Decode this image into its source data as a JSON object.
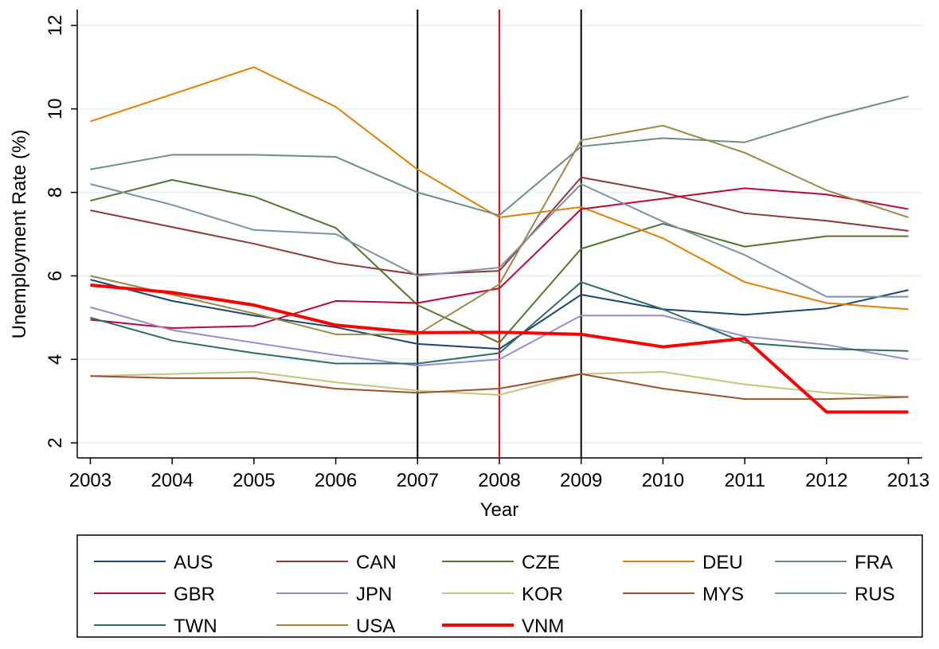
{
  "chart_data": {
    "type": "line",
    "x_label": "Year",
    "y_label": "Unemployment Rate (%)",
    "x": [
      2003,
      2004,
      2005,
      2006,
      2007,
      2008,
      2009,
      2010,
      2011,
      2012,
      2013
    ],
    "xlim": [
      2002.84,
      2013.17
    ],
    "xticks": [
      2003,
      2004,
      2005,
      2006,
      2007,
      2008,
      2009,
      2010,
      2011,
      2012,
      2013
    ],
    "ylim": [
      1.64,
      12.38
    ],
    "yticks": [
      2,
      4,
      6,
      8,
      10,
      12
    ],
    "grid": true,
    "vlines": [
      {
        "x": 2007,
        "color": "#000000"
      },
      {
        "x": 2008,
        "color": "#ff0000"
      },
      {
        "x": 2009,
        "color": "#000000"
      }
    ],
    "series": [
      {
        "name": "AUS",
        "color": "#1a476f",
        "values": [
          5.91,
          5.4,
          5.05,
          4.77,
          4.37,
          4.25,
          5.55,
          5.2,
          5.07,
          5.22,
          5.66
        ]
      },
      {
        "name": "CAN",
        "color": "#90353b",
        "values": [
          7.57,
          7.17,
          6.77,
          6.31,
          6.03,
          6.12,
          8.36,
          8.0,
          7.5,
          7.32,
          7.08
        ]
      },
      {
        "name": "CZE",
        "color": "#55752f",
        "values": [
          7.8,
          8.3,
          7.9,
          7.15,
          5.3,
          4.4,
          6.65,
          7.25,
          6.7,
          6.95,
          6.95
        ]
      },
      {
        "name": "DEU",
        "color": "#e37e00",
        "values": [
          9.7,
          10.35,
          11.0,
          10.05,
          8.55,
          7.4,
          7.65,
          6.9,
          5.85,
          5.35,
          5.2
        ]
      },
      {
        "name": "FRA",
        "color": "#6e8e84",
        "values": [
          8.55,
          8.9,
          8.9,
          8.85,
          8.0,
          7.45,
          9.1,
          9.3,
          9.2,
          9.8,
          10.3
        ]
      },
      {
        "name": "GBR",
        "color": "#c10534",
        "values": [
          4.95,
          4.75,
          4.8,
          5.4,
          5.35,
          5.7,
          7.6,
          7.85,
          8.1,
          7.95,
          7.6
        ]
      },
      {
        "name": "JPN",
        "color": "#938dd2",
        "values": [
          5.25,
          4.7,
          4.4,
          4.1,
          3.85,
          4.0,
          5.05,
          5.05,
          4.55,
          4.35,
          4.0
        ]
      },
      {
        "name": "KOR",
        "color": "#cac27e",
        "values": [
          3.6,
          3.65,
          3.7,
          3.45,
          3.25,
          3.15,
          3.65,
          3.7,
          3.4,
          3.2,
          3.1
        ]
      },
      {
        "name": "MYS",
        "color": "#a0522d",
        "values": [
          3.6,
          3.55,
          3.55,
          3.3,
          3.2,
          3.3,
          3.65,
          3.3,
          3.05,
          3.05,
          3.1
        ]
      },
      {
        "name": "RUS",
        "color": "#7b92a8",
        "values": [
          8.2,
          7.7,
          7.1,
          7.0,
          6.0,
          6.2,
          8.2,
          7.3,
          6.5,
          5.5,
          5.5
        ]
      },
      {
        "name": "TWN",
        "color": "#2d6d66",
        "values": [
          5.0,
          4.45,
          4.15,
          3.9,
          3.9,
          4.15,
          5.85,
          5.2,
          4.4,
          4.25,
          4.2
        ]
      },
      {
        "name": "USA",
        "color": "#9c8847",
        "values": [
          6.0,
          5.55,
          5.1,
          4.6,
          4.6,
          5.8,
          9.25,
          9.6,
          8.95,
          8.05,
          7.4
        ]
      },
      {
        "name": "VNM",
        "color": "#ff0000",
        "values": [
          5.78,
          5.6,
          5.3,
          4.82,
          4.64,
          4.65,
          4.6,
          4.3,
          4.5,
          2.74,
          2.74
        ]
      }
    ]
  }
}
